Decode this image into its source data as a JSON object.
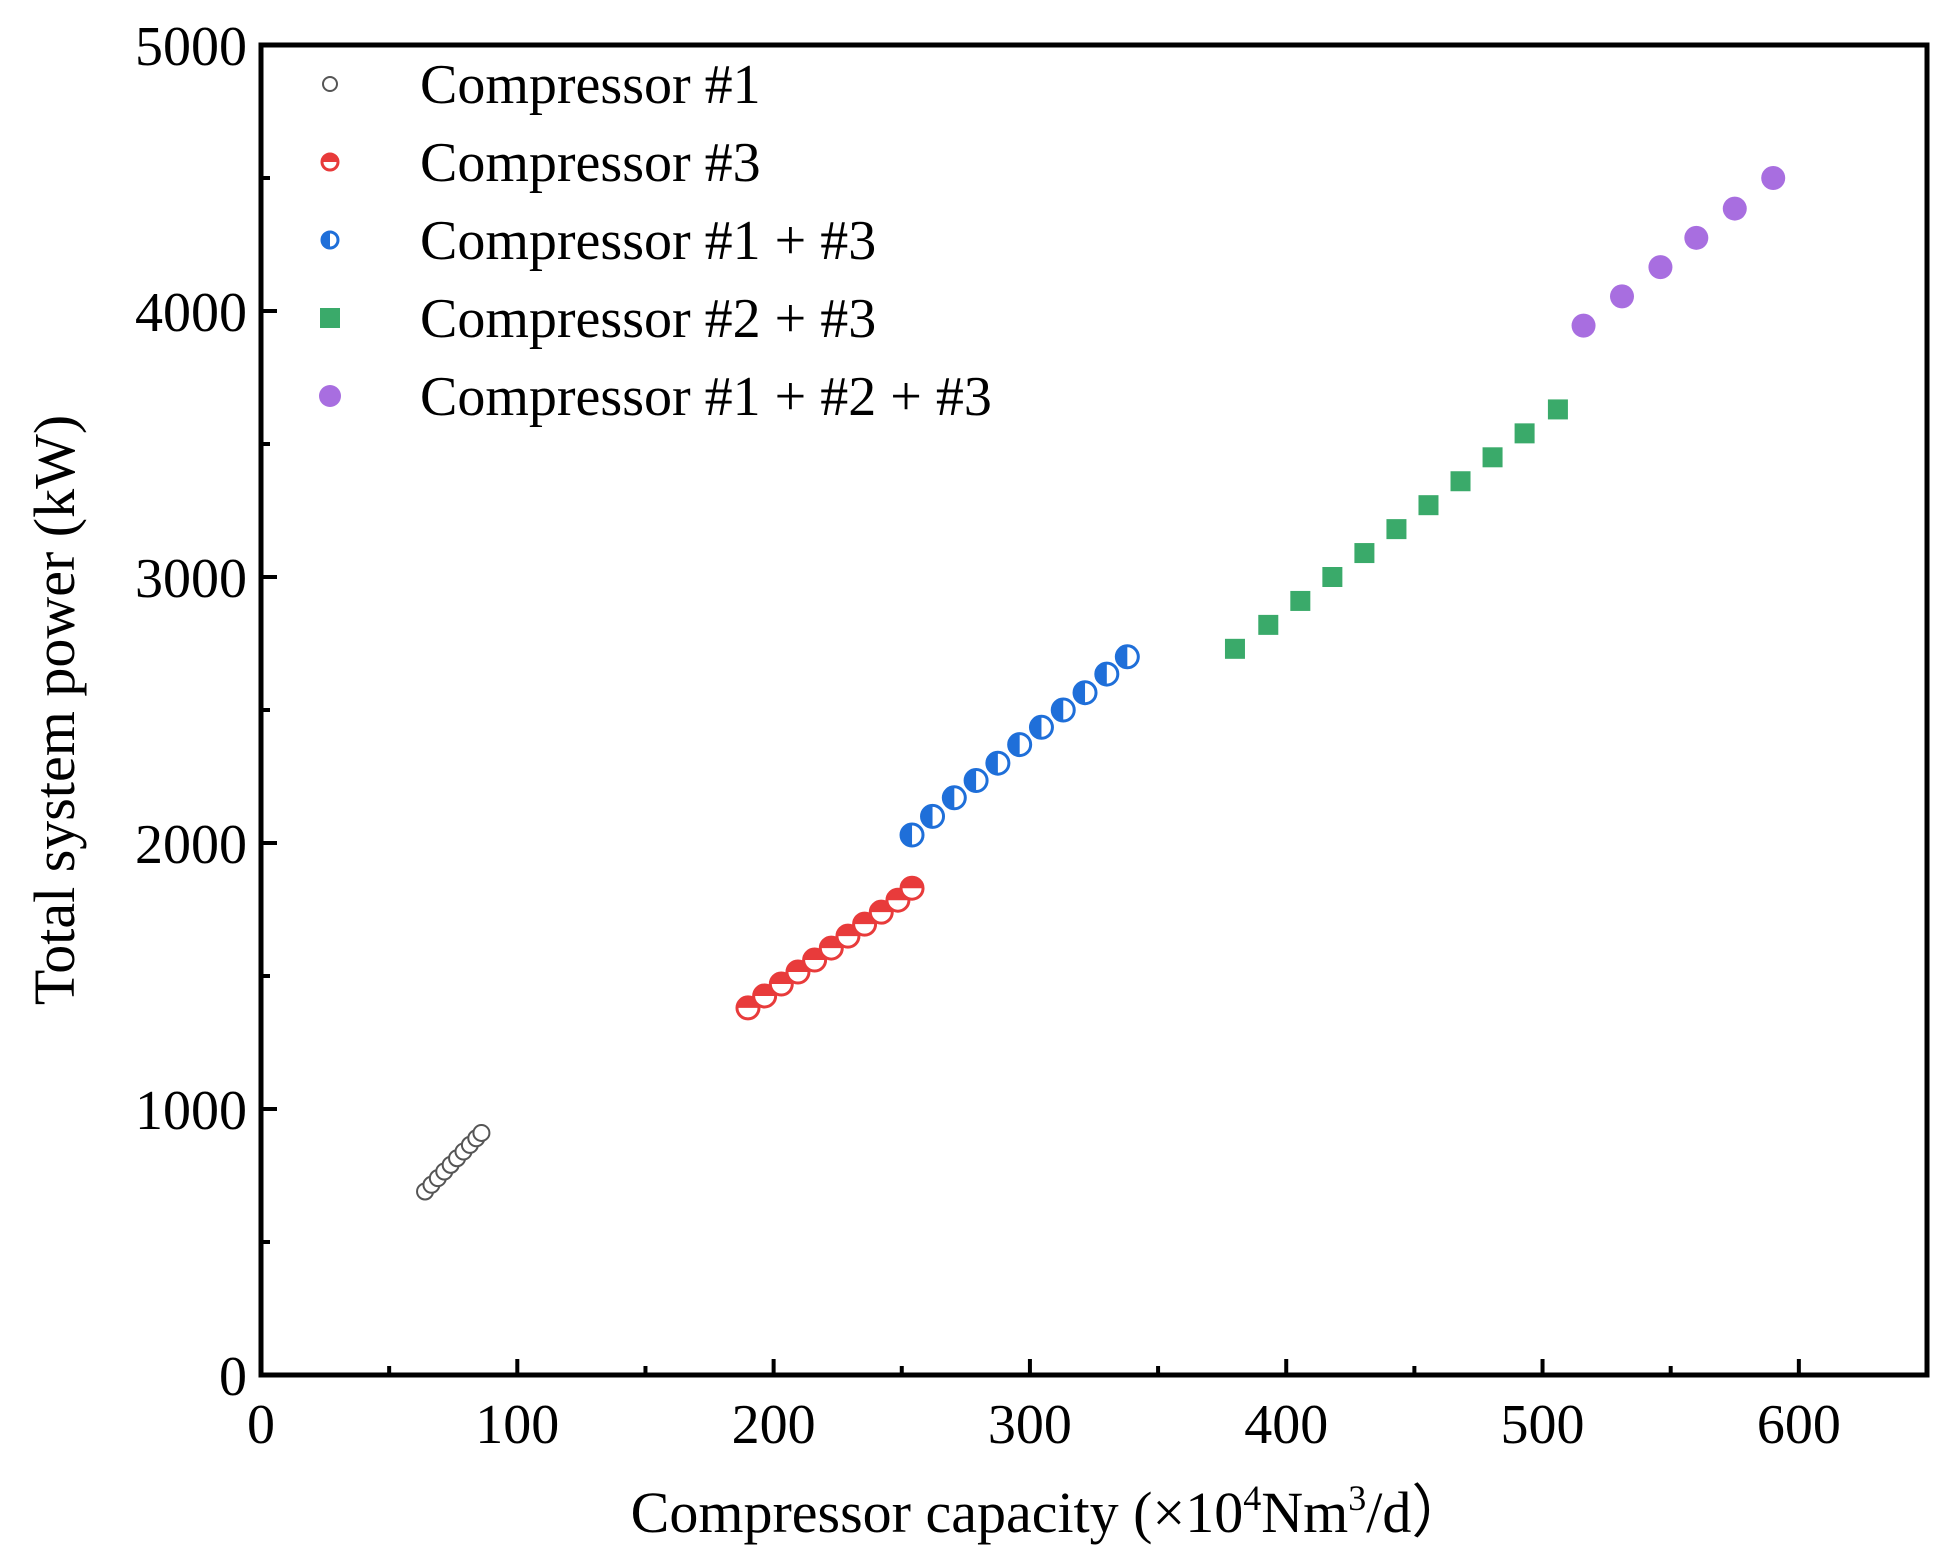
{
  "chart_data": {
    "type": "scatter",
    "title": "",
    "xlabel": "Compressor capacity (×10",
    "xlabel_sup1": "4",
    "xlabel_mid": "Nm",
    "xlabel_sup2": "3",
    "xlabel_end": "/d）",
    "ylabel": "Total system power (kW)",
    "xlim": [
      0,
      650
    ],
    "ylim": [
      0,
      5000
    ],
    "x_ticks": [
      0,
      100,
      200,
      300,
      400,
      500,
      600
    ],
    "x_tick_labels": [
      "0",
      "100",
      "200",
      "300",
      "400",
      "500",
      "600"
    ],
    "x_minor_ticks": [
      50,
      150,
      250,
      350,
      450,
      550
    ],
    "y_ticks": [
      0,
      1000,
      2000,
      3000,
      4000,
      5000
    ],
    "y_tick_labels": [
      "0",
      "1000",
      "2000",
      "3000",
      "4000",
      "5000"
    ],
    "y_minor_ticks": [
      500,
      1500,
      2500,
      3500,
      4500
    ],
    "grid": false,
    "legend_position": "top-left",
    "series": [
      {
        "name": "Compressor #1",
        "marker": "open-circle",
        "color": "#555555",
        "x": [
          64,
          66.5,
          69,
          71.5,
          74,
          76.5,
          79,
          81.5,
          84,
          86
        ],
        "y": [
          690,
          715,
          740,
          765,
          790,
          815,
          840,
          865,
          890,
          910
        ]
      },
      {
        "name": "Compressor #3",
        "marker": "half-filled-top-circle",
        "color": "#e83b3b",
        "x": [
          190,
          196.5,
          203,
          209.5,
          216,
          222.5,
          229,
          235.5,
          242,
          248.5,
          254
        ],
        "y": [
          1380,
          1425,
          1470,
          1515,
          1560,
          1605,
          1650,
          1695,
          1740,
          1785,
          1830
        ]
      },
      {
        "name": "Compressor #1 + #3",
        "marker": "half-filled-left-circle",
        "color": "#1f6fd9",
        "x": [
          254,
          262,
          270.5,
          279,
          287.5,
          296,
          304.5,
          313,
          321.5,
          330,
          338
        ],
        "y": [
          2030,
          2100,
          2170,
          2235,
          2300,
          2370,
          2435,
          2500,
          2565,
          2635,
          2700
        ]
      },
      {
        "name": "Compressor #2 + #3",
        "marker": "filled-square",
        "color": "#3aaa6a",
        "x": [
          380,
          393,
          405.5,
          418,
          430.5,
          443,
          455.5,
          468,
          480.5,
          493,
          506
        ],
        "y": [
          2730,
          2820,
          2910,
          3000,
          3090,
          3180,
          3270,
          3360,
          3450,
          3540,
          3630
        ]
      },
      {
        "name": "Compressor #1 + #2 + #3",
        "marker": "filled-circle",
        "color": "#a86ee0",
        "x": [
          516,
          531,
          546,
          560,
          575,
          590
        ],
        "y": [
          3945,
          4055,
          4165,
          4275,
          4385,
          4500
        ]
      }
    ]
  }
}
